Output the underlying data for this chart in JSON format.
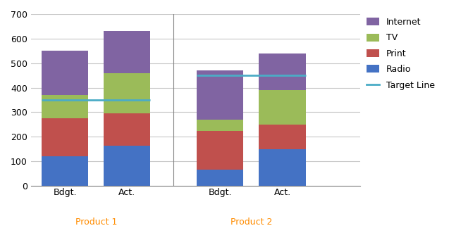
{
  "categories": [
    "Bdgt.",
    "Act.",
    "Bdgt.",
    "Act."
  ],
  "groups": [
    "Product 1",
    "Product 2"
  ],
  "radio": [
    120,
    165,
    65,
    150
  ],
  "print": [
    155,
    130,
    160,
    100
  ],
  "tv": [
    95,
    165,
    45,
    140
  ],
  "internet": [
    180,
    170,
    200,
    150
  ],
  "target_values": [
    350,
    450
  ],
  "colors": {
    "radio": "#4472C4",
    "print": "#C0504D",
    "tv": "#9BBB59",
    "internet": "#8064A2",
    "target": "#4BACC6"
  },
  "ylim": [
    0,
    700
  ],
  "yticks": [
    0,
    100,
    200,
    300,
    400,
    500,
    600,
    700
  ],
  "group_labels": [
    "Product 1",
    "Product 2"
  ],
  "legend_labels": [
    "Internet",
    "TV",
    "Print",
    "Radio",
    "Target Line"
  ],
  "bar_width": 0.75,
  "background_color": "#FFFFFF",
  "grid_color": "#C8C8C8",
  "separator_color": "#808080"
}
